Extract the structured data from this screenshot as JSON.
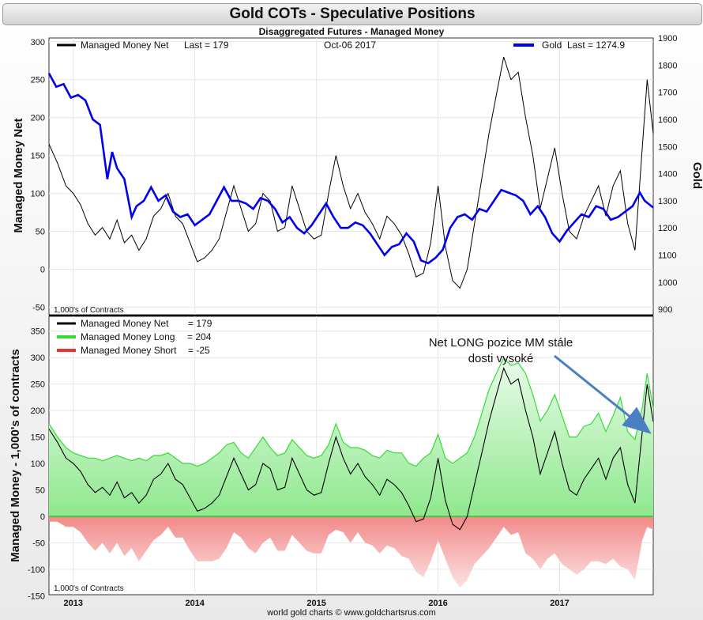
{
  "title": "Gold COTs - Speculative Positions",
  "subtitle": "Disaggregated Futures - Managed Money",
  "footer": "world gold charts © www.goldchartsrus.com",
  "annotation": [
    "Net LONG pozice MM stále",
    "dosti vysoké"
  ],
  "colors": {
    "net": "#000000",
    "gold": "#0000ee",
    "long": "#33dd33",
    "long_fill": "#bff5bf",
    "short": "#ee3333",
    "short_fill": "#f6b2b2"
  },
  "chart_data": [
    {
      "type": "line",
      "panel": "top",
      "date_label": "Oct-06 2017",
      "ylabel_left": "Managed Money Net",
      "ylabel_right": "Gold",
      "units_note": "1,000's of Contracts",
      "ylim_left": [
        -60,
        305
      ],
      "ylim_right": [
        880,
        1900
      ],
      "yticks_left": [
        300,
        250,
        200,
        150,
        100,
        50,
        0,
        -50
      ],
      "yticks_right": [
        1900,
        1800,
        1700,
        1600,
        1500,
        1400,
        1300,
        1200,
        1100,
        1000,
        900
      ],
      "xticks": [
        "2013",
        "2014",
        "2015",
        "2016",
        "2017"
      ],
      "xlim": [
        2012.8,
        2017.77
      ],
      "legend": [
        {
          "name": "Managed Money Net",
          "value": "Last = 179",
          "color": "#000000"
        },
        {
          "name": "Gold",
          "value": "Last = 1274.9",
          "color": "#0000ee"
        }
      ],
      "series": [
        {
          "name": "Managed Money Net",
          "axis": "left",
          "x": [
            2012.8,
            2012.87,
            2012.94,
            2013.0,
            2013.06,
            2013.12,
            2013.18,
            2013.24,
            2013.3,
            2013.36,
            2013.42,
            2013.48,
            2013.54,
            2013.6,
            2013.66,
            2013.72,
            2013.78,
            2013.84,
            2013.9,
            2013.96,
            2014.02,
            2014.08,
            2014.14,
            2014.2,
            2014.26,
            2014.32,
            2014.38,
            2014.44,
            2014.5,
            2014.56,
            2014.62,
            2014.68,
            2014.74,
            2014.8,
            2014.86,
            2014.92,
            2014.98,
            2015.04,
            2015.1,
            2015.16,
            2015.22,
            2015.28,
            2015.34,
            2015.4,
            2015.46,
            2015.52,
            2015.58,
            2015.64,
            2015.7,
            2015.76,
            2015.82,
            2015.88,
            2015.94,
            2016.0,
            2016.06,
            2016.12,
            2016.18,
            2016.24,
            2016.3,
            2016.36,
            2016.42,
            2016.48,
            2016.54,
            2016.6,
            2016.66,
            2016.72,
            2016.78,
            2016.84,
            2016.9,
            2016.96,
            2017.02,
            2017.08,
            2017.14,
            2017.2,
            2017.26,
            2017.32,
            2017.38,
            2017.44,
            2017.5,
            2017.56,
            2017.62,
            2017.68,
            2017.72,
            2017.77
          ],
          "values": [
            165,
            140,
            110,
            100,
            85,
            60,
            45,
            55,
            40,
            65,
            35,
            45,
            25,
            40,
            70,
            80,
            100,
            70,
            60,
            35,
            10,
            15,
            25,
            40,
            75,
            110,
            80,
            50,
            60,
            100,
            90,
            50,
            55,
            110,
            80,
            50,
            40,
            45,
            100,
            150,
            110,
            80,
            100,
            75,
            60,
            40,
            70,
            60,
            45,
            20,
            -10,
            -5,
            35,
            110,
            30,
            -15,
            -25,
            0,
            60,
            120,
            180,
            230,
            280,
            250,
            260,
            200,
            150,
            80,
            120,
            160,
            100,
            50,
            40,
            70,
            90,
            110,
            70,
            110,
            130,
            60,
            25,
            160,
            250,
            179
          ]
        },
        {
          "name": "Gold",
          "axis": "right",
          "x": [
            2012.8,
            2012.86,
            2012.92,
            2012.98,
            2013.04,
            2013.1,
            2013.16,
            2013.22,
            2013.28,
            2013.32,
            2013.36,
            2013.42,
            2013.48,
            2013.52,
            2013.58,
            2013.64,
            2013.7,
            2013.76,
            2013.82,
            2013.88,
            2013.94,
            2014.0,
            2014.06,
            2014.12,
            2014.18,
            2014.24,
            2014.3,
            2014.36,
            2014.42,
            2014.48,
            2014.54,
            2014.6,
            2014.66,
            2014.72,
            2014.78,
            2014.84,
            2014.9,
            2014.96,
            2015.02,
            2015.08,
            2015.14,
            2015.2,
            2015.26,
            2015.32,
            2015.38,
            2015.44,
            2015.5,
            2015.56,
            2015.62,
            2015.68,
            2015.74,
            2015.8,
            2015.86,
            2015.92,
            2015.98,
            2016.04,
            2016.1,
            2016.16,
            2016.22,
            2016.28,
            2016.34,
            2016.4,
            2016.46,
            2016.52,
            2016.58,
            2016.64,
            2016.7,
            2016.76,
            2016.82,
            2016.88,
            2016.94,
            2017.0,
            2017.06,
            2017.12,
            2017.18,
            2017.24,
            2017.3,
            2017.36,
            2017.42,
            2017.48,
            2017.54,
            2017.6,
            2017.66,
            2017.7,
            2017.77
          ],
          "values": [
            1770,
            1720,
            1730,
            1680,
            1690,
            1670,
            1600,
            1580,
            1380,
            1480,
            1420,
            1380,
            1240,
            1280,
            1300,
            1350,
            1300,
            1320,
            1260,
            1240,
            1250,
            1210,
            1230,
            1250,
            1300,
            1350,
            1300,
            1300,
            1290,
            1270,
            1310,
            1300,
            1270,
            1220,
            1240,
            1200,
            1180,
            1210,
            1250,
            1290,
            1240,
            1200,
            1200,
            1220,
            1210,
            1180,
            1140,
            1100,
            1130,
            1140,
            1180,
            1150,
            1080,
            1070,
            1090,
            1120,
            1200,
            1240,
            1250,
            1230,
            1270,
            1260,
            1300,
            1340,
            1330,
            1320,
            1300,
            1250,
            1280,
            1240,
            1180,
            1150,
            1190,
            1220,
            1250,
            1240,
            1280,
            1270,
            1230,
            1240,
            1260,
            1280,
            1330,
            1300,
            1275
          ]
        }
      ]
    },
    {
      "type": "area",
      "panel": "bottom",
      "ylabel": "Managed Money - 1,000's of contracts",
      "units_note": "1,000's of Contracts",
      "ylim": [
        -148,
        378
      ],
      "yticks": [
        350,
        300,
        250,
        200,
        150,
        100,
        50,
        0,
        -50,
        -100,
        -150
      ],
      "xticks": [
        "2013",
        "2014",
        "2015",
        "2016",
        "2017"
      ],
      "xlim": [
        2012.8,
        2017.77
      ],
      "legend": [
        {
          "name": "Managed Money Net",
          "value": "= 179",
          "color": "#000000"
        },
        {
          "name": "Managed Money Long",
          "value": "= 204",
          "color": "#33dd33"
        },
        {
          "name": "Managed Money Short",
          "value": "= -25",
          "color": "#ee3333"
        }
      ],
      "x": [
        2012.8,
        2012.87,
        2012.94,
        2013.0,
        2013.06,
        2013.12,
        2013.18,
        2013.24,
        2013.3,
        2013.36,
        2013.42,
        2013.48,
        2013.54,
        2013.6,
        2013.66,
        2013.72,
        2013.78,
        2013.84,
        2013.9,
        2013.96,
        2014.02,
        2014.08,
        2014.14,
        2014.2,
        2014.26,
        2014.32,
        2014.38,
        2014.44,
        2014.5,
        2014.56,
        2014.62,
        2014.68,
        2014.74,
        2014.8,
        2014.86,
        2014.92,
        2014.98,
        2015.04,
        2015.1,
        2015.16,
        2015.22,
        2015.28,
        2015.34,
        2015.4,
        2015.46,
        2015.52,
        2015.58,
        2015.64,
        2015.7,
        2015.76,
        2015.82,
        2015.88,
        2015.94,
        2016.0,
        2016.06,
        2016.12,
        2016.18,
        2016.24,
        2016.3,
        2016.36,
        2016.42,
        2016.48,
        2016.54,
        2016.6,
        2016.66,
        2016.72,
        2016.78,
        2016.84,
        2016.9,
        2016.96,
        2017.02,
        2017.08,
        2017.14,
        2017.2,
        2017.26,
        2017.32,
        2017.38,
        2017.44,
        2017.5,
        2017.56,
        2017.62,
        2017.68,
        2017.72,
        2017.77
      ],
      "series": [
        {
          "name": "Managed Money Long",
          "values": [
            175,
            150,
            130,
            120,
            115,
            110,
            110,
            105,
            110,
            115,
            110,
            105,
            110,
            105,
            115,
            115,
            120,
            110,
            100,
            100,
            95,
            100,
            110,
            120,
            135,
            140,
            120,
            110,
            130,
            150,
            130,
            115,
            120,
            145,
            130,
            115,
            110,
            115,
            135,
            175,
            140,
            130,
            130,
            125,
            115,
            110,
            125,
            120,
            120,
            100,
            95,
            110,
            120,
            155,
            110,
            100,
            110,
            120,
            150,
            195,
            240,
            270,
            300,
            285,
            290,
            270,
            230,
            180,
            200,
            230,
            190,
            150,
            150,
            170,
            175,
            195,
            160,
            190,
            225,
            160,
            145,
            205,
            270,
            204
          ]
        },
        {
          "name": "Managed Money Short",
          "values": [
            -10,
            -10,
            -20,
            -20,
            -30,
            -50,
            -65,
            -50,
            -70,
            -50,
            -75,
            -60,
            -85,
            -65,
            -45,
            -35,
            -20,
            -40,
            -40,
            -65,
            -85,
            -85,
            -85,
            -80,
            -60,
            -30,
            -40,
            -60,
            -70,
            -50,
            -40,
            -65,
            -65,
            -35,
            -50,
            -65,
            -70,
            -70,
            -35,
            -25,
            -30,
            -50,
            -30,
            -50,
            -55,
            -70,
            -55,
            -60,
            -75,
            -80,
            -105,
            -115,
            -85,
            -45,
            -80,
            -115,
            -135,
            -120,
            -90,
            -75,
            -60,
            -40,
            -20,
            -35,
            -30,
            -70,
            -80,
            -100,
            -80,
            -70,
            -90,
            -100,
            -110,
            -100,
            -85,
            -85,
            -90,
            -80,
            -95,
            -100,
            -120,
            -45,
            -20,
            -25
          ]
        },
        {
          "name": "Managed Money Net",
          "values": [
            165,
            140,
            110,
            100,
            85,
            60,
            45,
            55,
            40,
            65,
            35,
            45,
            25,
            40,
            70,
            80,
            100,
            70,
            60,
            35,
            10,
            15,
            25,
            40,
            75,
            110,
            80,
            50,
            60,
            100,
            90,
            50,
            55,
            110,
            80,
            50,
            40,
            45,
            100,
            150,
            110,
            80,
            100,
            75,
            60,
            40,
            70,
            60,
            45,
            20,
            -10,
            -5,
            35,
            110,
            30,
            -15,
            -25,
            0,
            60,
            120,
            180,
            230,
            280,
            250,
            260,
            200,
            150,
            80,
            120,
            160,
            100,
            50,
            40,
            70,
            90,
            110,
            70,
            110,
            130,
            60,
            25,
            160,
            250,
            179
          ]
        }
      ]
    }
  ]
}
